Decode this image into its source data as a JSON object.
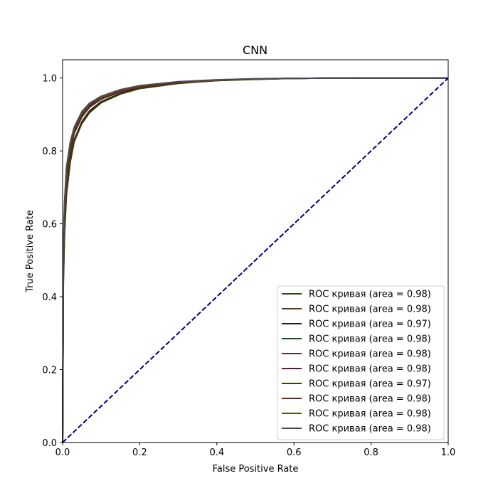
{
  "chart_data": {
    "type": "line",
    "title": "CNN",
    "xlabel": "False Positive Rate",
    "ylabel": "True Positive Rate",
    "xlim": [
      0.0,
      1.0
    ],
    "ylim": [
      0.0,
      1.05
    ],
    "xticks": [
      "0.0",
      "0.2",
      "0.4",
      "0.6",
      "0.8",
      "1.0"
    ],
    "yticks": [
      "0.0",
      "0.2",
      "0.4",
      "0.6",
      "0.8",
      "1.0"
    ],
    "grid": false,
    "legend_position": "lower right",
    "series": [
      {
        "name": "ROC кривая (area = 0.98)",
        "color": "#2d4a17",
        "x": [
          0,
          0.002,
          0.005,
          0.01,
          0.02,
          0.03,
          0.05,
          0.07,
          0.1,
          0.15,
          0.2,
          0.3,
          0.4,
          0.5,
          0.6,
          0.8,
          1.0
        ],
        "y": [
          0,
          0.5,
          0.63,
          0.73,
          0.81,
          0.855,
          0.9,
          0.925,
          0.945,
          0.965,
          0.977,
          0.988,
          0.994,
          0.997,
          0.999,
          1.0,
          1.0
        ]
      },
      {
        "name": "ROC кривая (area = 0.98)",
        "color": "#5a3f26",
        "x": [
          0,
          0.002,
          0.005,
          0.01,
          0.02,
          0.03,
          0.05,
          0.07,
          0.1,
          0.15,
          0.2,
          0.3,
          0.4,
          0.5,
          0.6,
          0.8,
          1.0
        ],
        "y": [
          0,
          0.48,
          0.62,
          0.72,
          0.8,
          0.85,
          0.895,
          0.922,
          0.943,
          0.963,
          0.976,
          0.988,
          0.994,
          0.997,
          0.999,
          1.0,
          1.0
        ]
      },
      {
        "name": "ROC кривая (area = 0.97)",
        "color": "#222222",
        "x": [
          0,
          0.002,
          0.005,
          0.01,
          0.02,
          0.03,
          0.05,
          0.07,
          0.1,
          0.15,
          0.2,
          0.3,
          0.4,
          0.5,
          0.6,
          0.8,
          1.0
        ],
        "y": [
          0,
          0.45,
          0.58,
          0.69,
          0.78,
          0.83,
          0.88,
          0.91,
          0.935,
          0.958,
          0.972,
          0.986,
          0.993,
          0.997,
          0.999,
          1.0,
          1.0
        ]
      },
      {
        "name": "ROC кривая (area = 0.98)",
        "color": "#1e4a26",
        "x": [
          0,
          0.002,
          0.005,
          0.01,
          0.02,
          0.03,
          0.05,
          0.07,
          0.1,
          0.15,
          0.2,
          0.3,
          0.4,
          0.5,
          0.6,
          0.8,
          1.0
        ],
        "y": [
          0,
          0.52,
          0.65,
          0.75,
          0.82,
          0.86,
          0.905,
          0.928,
          0.948,
          0.967,
          0.978,
          0.989,
          0.994,
          0.997,
          0.999,
          1.0,
          1.0
        ]
      },
      {
        "name": "ROC кривая (area = 0.98)",
        "color": "#553333",
        "x": [
          0,
          0.002,
          0.005,
          0.01,
          0.02,
          0.03,
          0.05,
          0.07,
          0.1,
          0.15,
          0.2,
          0.3,
          0.4,
          0.5,
          0.6,
          0.8,
          1.0
        ],
        "y": [
          0,
          0.49,
          0.62,
          0.725,
          0.805,
          0.852,
          0.897,
          0.924,
          0.944,
          0.964,
          0.977,
          0.988,
          0.994,
          0.997,
          0.999,
          1.0,
          1.0
        ]
      },
      {
        "name": "ROC кривая (area = 0.98)",
        "color": "#5e1a3c",
        "x": [
          0,
          0.002,
          0.005,
          0.01,
          0.02,
          0.03,
          0.05,
          0.07,
          0.1,
          0.15,
          0.2,
          0.3,
          0.4,
          0.5,
          0.6,
          0.8,
          1.0
        ],
        "y": [
          0,
          0.5,
          0.64,
          0.74,
          0.815,
          0.858,
          0.902,
          0.927,
          0.946,
          0.966,
          0.978,
          0.989,
          0.994,
          0.997,
          0.999,
          1.0,
          1.0
        ]
      },
      {
        "name": "ROC кривая (area = 0.97)",
        "color": "#3b3d05",
        "x": [
          0,
          0.002,
          0.005,
          0.01,
          0.02,
          0.03,
          0.05,
          0.07,
          0.1,
          0.15,
          0.2,
          0.3,
          0.4,
          0.5,
          0.6,
          0.8,
          1.0
        ],
        "y": [
          0,
          0.44,
          0.57,
          0.68,
          0.77,
          0.825,
          0.875,
          0.905,
          0.932,
          0.956,
          0.971,
          0.985,
          0.993,
          0.996,
          0.999,
          1.0,
          1.0
        ]
      },
      {
        "name": "ROC кривая (area = 0.98)",
        "color": "#6b2418",
        "x": [
          0,
          0.002,
          0.005,
          0.01,
          0.02,
          0.03,
          0.05,
          0.07,
          0.1,
          0.15,
          0.2,
          0.3,
          0.4,
          0.5,
          0.6,
          0.8,
          1.0
        ],
        "y": [
          0,
          0.47,
          0.61,
          0.715,
          0.798,
          0.848,
          0.893,
          0.92,
          0.942,
          0.962,
          0.975,
          0.987,
          0.993,
          0.997,
          0.999,
          1.0,
          1.0
        ]
      },
      {
        "name": "ROC кривая (area = 0.98)",
        "color": "#4a5a18",
        "x": [
          0,
          0.002,
          0.005,
          0.01,
          0.02,
          0.03,
          0.05,
          0.07,
          0.1,
          0.15,
          0.2,
          0.3,
          0.4,
          0.5,
          0.6,
          0.8,
          1.0
        ],
        "y": [
          0,
          0.51,
          0.645,
          0.745,
          0.818,
          0.86,
          0.904,
          0.929,
          0.947,
          0.967,
          0.978,
          0.989,
          0.994,
          0.997,
          0.999,
          1.0,
          1.0
        ]
      },
      {
        "name": "ROC кривая (area = 0.98)",
        "color": "#48485a",
        "x": [
          0,
          0.002,
          0.005,
          0.01,
          0.02,
          0.03,
          0.05,
          0.07,
          0.1,
          0.15,
          0.2,
          0.3,
          0.4,
          0.5,
          0.6,
          0.8,
          1.0
        ],
        "y": [
          0,
          0.53,
          0.66,
          0.755,
          0.825,
          0.865,
          0.908,
          0.931,
          0.95,
          0.968,
          0.979,
          0.99,
          0.995,
          0.998,
          0.999,
          1.0,
          1.0
        ]
      }
    ],
    "reference_line": {
      "x": [
        0,
        1
      ],
      "y": [
        0,
        1
      ],
      "color": "#000080",
      "style": "dashed"
    }
  }
}
